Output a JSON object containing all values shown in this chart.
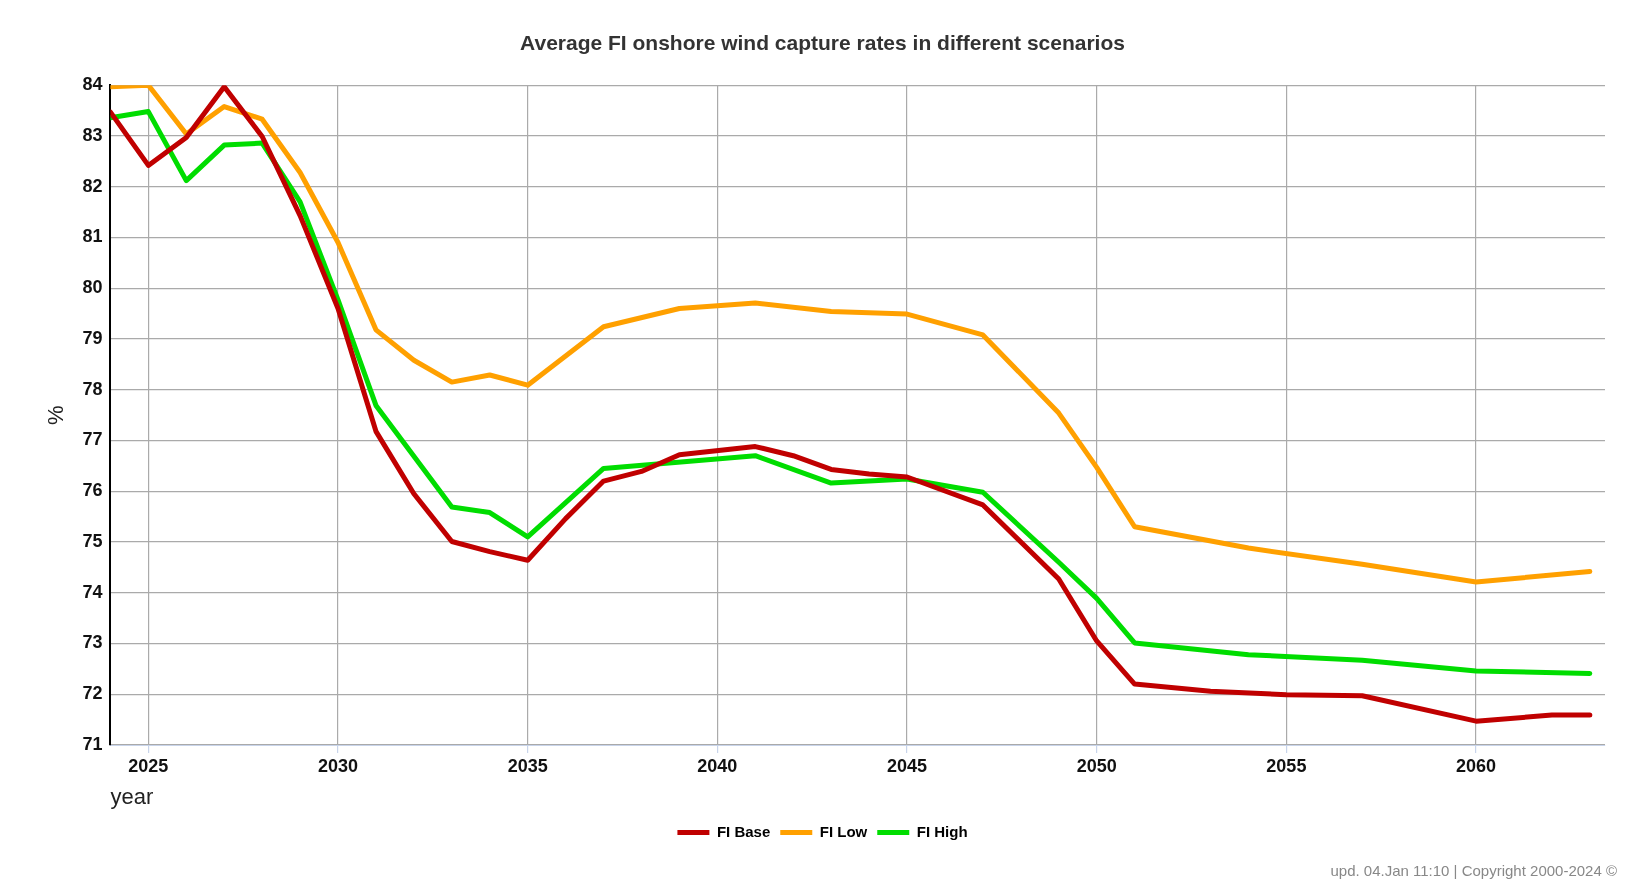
{
  "chart_data": {
    "type": "line",
    "title": "Average FI onshore wind capture rates in different scenarios",
    "xlabel": "year",
    "ylabel": "%",
    "xlim": [
      2024,
      2063.4
    ],
    "xticks": [
      2025,
      2030,
      2035,
      2040,
      2045,
      2050,
      2055,
      2060
    ],
    "ylim": [
      71,
      84
    ],
    "yticks": [
      71,
      72,
      73,
      74,
      75,
      76,
      77,
      78,
      79,
      80,
      81,
      82,
      83,
      84
    ],
    "grid": true,
    "legend": "bottom",
    "marker": "none",
    "line_style": "solid",
    "series": [
      {
        "name": "FI Base",
        "color": "#c00000",
        "x": [
          2024,
          2025,
          2026,
          2027,
          2028,
          2029,
          2030,
          2031,
          2032,
          2033,
          2034,
          2035,
          2036,
          2037,
          2038,
          2039,
          2041,
          2042,
          2043,
          2044,
          2045,
          2047,
          2049,
          2050,
          2051,
          2053,
          2055,
          2057,
          2060,
          2062,
          2063
        ],
        "values": [
          83.47,
          82.42,
          82.97,
          83.97,
          82.99,
          81.43,
          79.6,
          77.18,
          75.95,
          75.01,
          74.81,
          74.64,
          75.46,
          76.2,
          76.39,
          76.72,
          76.88,
          76.7,
          76.43,
          76.34,
          76.28,
          75.73,
          74.27,
          73.05,
          72.2,
          72.06,
          71.99,
          71.97,
          71.47,
          71.59,
          71.59
        ]
      },
      {
        "name": "FI Low",
        "color": "#ffa000",
        "x": [
          2024,
          2025,
          2026,
          2027,
          2028,
          2029,
          2030,
          2031,
          2032,
          2033,
          2034,
          2035,
          2037,
          2039,
          2041,
          2043,
          2045,
          2047,
          2049,
          2050,
          2051,
          2054,
          2057,
          2060,
          2063
        ],
        "values": [
          83.97,
          84.0,
          83.04,
          83.58,
          83.33,
          82.28,
          80.9,
          79.18,
          78.58,
          78.15,
          78.29,
          78.09,
          79.24,
          79.6,
          79.71,
          79.54,
          79.49,
          79.08,
          77.54,
          76.47,
          75.3,
          74.88,
          74.56,
          74.21,
          74.42
        ]
      },
      {
        "name": "FI High",
        "color": "#00dd00",
        "x": [
          2024,
          2025,
          2026,
          2027,
          2028,
          2029,
          2030,
          2031,
          2033,
          2034,
          2035,
          2037,
          2041,
          2043,
          2045,
          2047,
          2049,
          2050,
          2051,
          2054,
          2057,
          2060,
          2063
        ],
        "values": [
          83.36,
          83.48,
          82.12,
          82.82,
          82.86,
          81.7,
          79.77,
          77.69,
          75.69,
          75.58,
          75.1,
          76.45,
          76.7,
          76.16,
          76.24,
          75.98,
          74.6,
          73.89,
          73.01,
          72.78,
          72.67,
          72.46,
          72.41
        ]
      }
    ],
    "annotations": [
      "upd. 04.Jan 11:10 | Copyright 2000-2024 ©"
    ]
  }
}
